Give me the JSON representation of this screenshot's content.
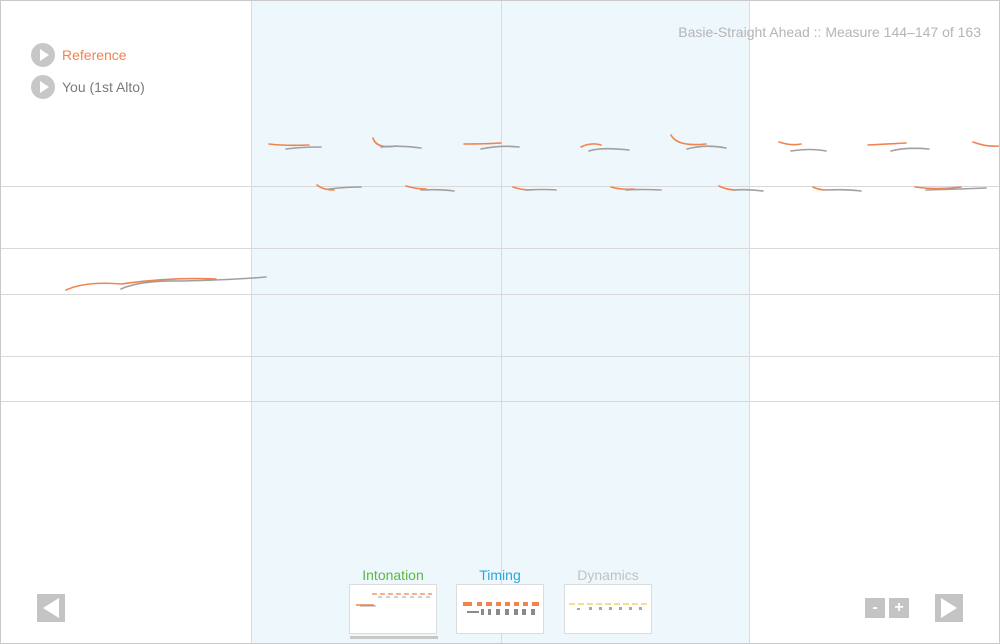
{
  "header": {
    "title": "Basie-Straight Ahead :: Measure 144–147 of 163"
  },
  "legend": {
    "reference_label": "Reference",
    "you_label": "You (1st Alto)"
  },
  "tabs": [
    {
      "label": "Intonation",
      "color": "#5ab845"
    },
    {
      "label": "Timing",
      "color": "#2aa6db"
    },
    {
      "label": "Dynamics",
      "color": "#c2c2c2"
    }
  ],
  "controls": {
    "zoom_out_label": "-",
    "zoom_in_label": "+"
  },
  "colors": {
    "reference": "#f2834f",
    "you": "#a0a0a0",
    "highlight": "#eef7fb",
    "dynamics_accent": "#f3d36a"
  },
  "icons": {
    "play": "play-icon",
    "prev": "arrow-left-icon",
    "next": "arrow-right-icon"
  }
}
